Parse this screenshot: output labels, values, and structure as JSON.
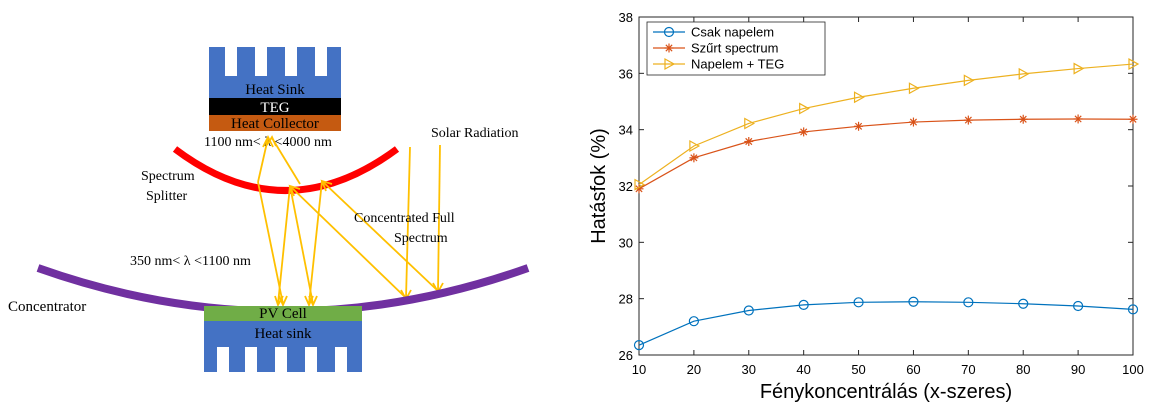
{
  "diagram": {
    "labels": {
      "heat_sink_top": "Heat Sink",
      "teg": "TEG",
      "heat_collector": "Heat Collector",
      "ir_band": "1100 nm< λ <4000 nm",
      "solar_radiation": "Solar Radiation",
      "spectrum_splitter_line1": "Spectrum",
      "spectrum_splitter_line2": "Splitter",
      "concentrated_line1": "Concentrated Full",
      "concentrated_line2": "Spectrum",
      "pv_band": "350 nm< λ <1100 nm",
      "concentrator": "Concentrator",
      "pv_cell": "PV Cell",
      "heat_sink_bottom": "Heat sink"
    },
    "colors": {
      "heat_sink": "#4472c4",
      "teg": "#000000",
      "heat_collector": "#c55a11",
      "splitter": "#ff0000",
      "concentrator": "#7030a0",
      "pv_cell": "#70ad47",
      "rays": "#ffc000"
    }
  },
  "chart_data": {
    "type": "line",
    "xlabel": "Fénykoncentrálás (x-szeres)",
    "ylabel": "Hatásfok (%)",
    "xlim": [
      10,
      100
    ],
    "ylim": [
      26,
      38
    ],
    "xticks": [
      "10",
      "20",
      "30",
      "40",
      "50",
      "60",
      "70",
      "80",
      "90",
      "100"
    ],
    "yticks": [
      "26",
      "28",
      "30",
      "32",
      "34",
      "36",
      "38"
    ],
    "x": [
      10,
      20,
      30,
      40,
      50,
      60,
      70,
      80,
      90,
      100
    ],
    "legend_position": "top-left",
    "series": [
      {
        "name": "Csak napelem",
        "marker": "circle",
        "color": "#0072bd",
        "values": [
          26.35,
          27.2,
          27.58,
          27.78,
          27.87,
          27.89,
          27.87,
          27.82,
          27.74,
          27.62
        ]
      },
      {
        "name": "Szűrt spectrum",
        "marker": "asterisk",
        "color": "#d95319",
        "values": [
          31.9,
          33.0,
          33.58,
          33.92,
          34.12,
          34.27,
          34.34,
          34.37,
          34.38,
          34.37
        ]
      },
      {
        "name": "Napelem + TEG",
        "marker": "triangle-right",
        "color": "#edb120",
        "values": [
          32.05,
          33.42,
          34.22,
          34.75,
          35.15,
          35.47,
          35.75,
          35.98,
          36.17,
          36.33
        ]
      }
    ]
  }
}
